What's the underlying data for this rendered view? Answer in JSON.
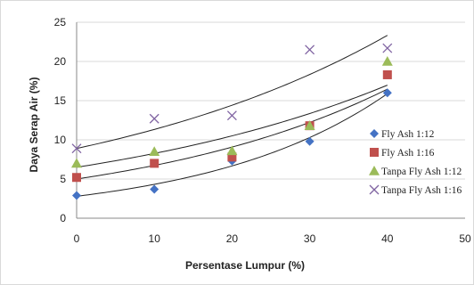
{
  "chart_data": {
    "type": "scatter",
    "xlabel": "Persentase Lumpur (%)",
    "ylabel": "Daya Serap Air (%)",
    "xlim": [
      0,
      50
    ],
    "ylim": [
      0,
      25
    ],
    "xticks": [
      0,
      10,
      20,
      30,
      40,
      50
    ],
    "yticks": [
      0,
      5,
      10,
      15,
      20,
      25
    ],
    "x": [
      0,
      10,
      20,
      30,
      40
    ],
    "grid": "horizontal",
    "legend_position": "right",
    "series": [
      {
        "name": "Fly Ash 1:12",
        "marker": "diamond",
        "color": "#4472c4",
        "values": [
          2.9,
          3.7,
          7.3,
          9.8,
          16.0
        ],
        "trendline": {
          "type": "exponential",
          "a": 2.8,
          "b": 0.0434
        }
      },
      {
        "name": "Fly Ash 1:16",
        "marker": "square",
        "color": "#c0504d",
        "values": [
          5.2,
          7.0,
          7.8,
          11.8,
          18.3
        ],
        "trendline": {
          "type": "exponential",
          "a": 5.0,
          "b": 0.0298
        }
      },
      {
        "name": "Tanpa Fly Ash 1:12",
        "marker": "triangle",
        "color": "#9bbb59",
        "values": [
          7.0,
          8.5,
          8.6,
          11.8,
          20.0
        ],
        "trendline": {
          "type": "exponential",
          "a": 6.5,
          "b": 0.024
        }
      },
      {
        "name": "Tanpa Fly Ash 1:16",
        "marker": "x",
        "color": "#8064a2",
        "values": [
          8.9,
          12.7,
          13.1,
          21.5,
          21.7
        ],
        "trendline": {
          "type": "exponential",
          "a": 8.9,
          "b": 0.0241
        }
      }
    ]
  }
}
